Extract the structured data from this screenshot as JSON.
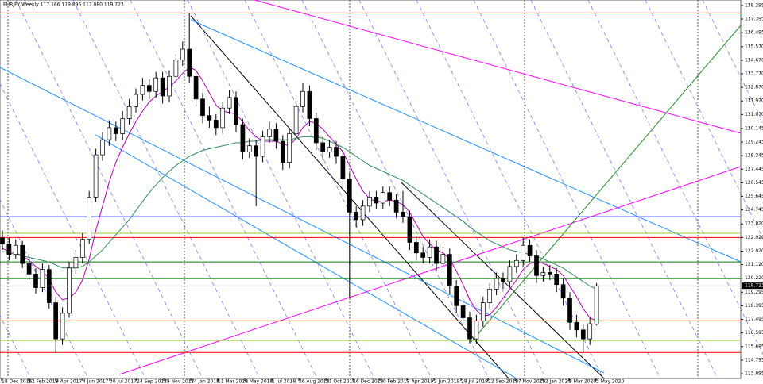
{
  "chart_data": {
    "type": "candlestick",
    "title": "EURJPY,Weekly  117.166 119.895 117.080 119.723",
    "ylim": [
      113.58,
      138.66
    ],
    "yticks": [
      138.295,
      137.395,
      136.495,
      {
        "value": 135.57,
        "label": "135.570"
      },
      {
        "value": 134.67,
        "label": "134.670"
      },
      {
        "value": 133.77,
        "label": "133.770"
      },
      {
        "value": 132.87,
        "label": "132.870"
      },
      {
        "value": 131.97,
        "label": "131.970"
      },
      {
        "value": 131.07,
        "label": "131.070"
      },
      130.145,
      129.245,
      128.345,
      127.445,
      126.545,
      125.645,
      124.745,
      {
        "value": 123.82,
        "label": "123.820"
      },
      {
        "value": 122.92,
        "label": "122.920"
      },
      {
        "value": 122.02,
        "label": "122.020"
      },
      {
        "value": 121.12,
        "label": "121.120"
      },
      {
        "value": 120.22,
        "label": "120.220"
      },
      119.295,
      118.395,
      117.495,
      116.595,
      115.695,
      114.795,
      113.895
    ],
    "date_labels": [
      "18 Dec 2016",
      "12 Feb 2017",
      "9 Apr 2017",
      "4 Jun 2017",
      "30 Jul 2017",
      "24 Sep 2017",
      "19 Nov 2017",
      "14 Jan 2018",
      "11 Mar 2018",
      "6 May 2018",
      "1 Jul 2018",
      "26 Aug 2018",
      "21 Oct 2018",
      "16 Dec 2018",
      "10 Feb 2019",
      "7 Apr 2019",
      "2 Jun 2019",
      "28 Jul 2019",
      "22 Sep 2019",
      "17 Nov 2019",
      "12 Jan 2020",
      "8 Mar 2020",
      "3 May 2020"
    ],
    "last_price": 119.723,
    "ohlc": [
      [
        122.9,
        123.4,
        122.1,
        122.5
      ],
      [
        122.5,
        122.9,
        121.4,
        121.8
      ],
      [
        121.8,
        122.8,
        121.5,
        122.4
      ],
      [
        122.4,
        122.7,
        120.9,
        121.2
      ],
      [
        121.2,
        121.6,
        120.1,
        120.5
      ],
      [
        120.5,
        120.9,
        119.2,
        119.6
      ],
      [
        119.6,
        121.2,
        119.3,
        120.8
      ],
      [
        120.8,
        121.1,
        118.2,
        118.6
      ],
      [
        118.6,
        119.0,
        115.27,
        116.2
      ],
      [
        116.2,
        118.3,
        115.8,
        117.9
      ],
      [
        117.9,
        121.3,
        117.6,
        120.9
      ],
      [
        120.9,
        122.1,
        120.5,
        121.6
      ],
      [
        121.6,
        123.2,
        121.2,
        122.8
      ],
      [
        122.8,
        126.0,
        122.5,
        125.6
      ],
      [
        125.6,
        128.8,
        125.3,
        128.4
      ],
      [
        128.4,
        129.9,
        128.0,
        129.4
      ],
      [
        129.4,
        130.7,
        129.0,
        130.2
      ],
      [
        130.2,
        130.6,
        129.3,
        129.8
      ],
      [
        129.8,
        131.3,
        129.4,
        130.8
      ],
      [
        130.8,
        132.1,
        130.4,
        131.6
      ],
      [
        131.6,
        132.8,
        131.2,
        132.4
      ],
      [
        132.4,
        133.5,
        132.0,
        133.0
      ],
      [
        133.0,
        133.4,
        132.1,
        132.6
      ],
      [
        132.6,
        133.9,
        132.2,
        133.5
      ],
      [
        133.5,
        133.9,
        131.8,
        132.3
      ],
      [
        132.3,
        134.0,
        131.9,
        133.6
      ],
      [
        133.6,
        135.1,
        133.2,
        134.7
      ],
      [
        134.7,
        135.9,
        134.3,
        135.4
      ],
      [
        135.4,
        137.8,
        133.2,
        133.6
      ],
      [
        133.6,
        134.0,
        131.6,
        132.1
      ],
      [
        132.1,
        132.5,
        130.5,
        131.0
      ],
      [
        131.0,
        131.6,
        130.2,
        130.7
      ],
      [
        130.7,
        131.1,
        129.7,
        130.2
      ],
      [
        130.2,
        131.9,
        129.8,
        131.5
      ],
      [
        131.5,
        132.7,
        131.1,
        132.2
      ],
      [
        132.2,
        132.6,
        129.9,
        130.4
      ],
      [
        130.4,
        130.8,
        128.1,
        128.6
      ],
      [
        128.6,
        129.5,
        128.2,
        129.0
      ],
      [
        129.0,
        129.4,
        125.0,
        128.3
      ],
      [
        128.3,
        130.0,
        127.9,
        129.6
      ],
      [
        129.6,
        130.6,
        129.2,
        130.1
      ],
      [
        130.1,
        130.5,
        128.8,
        129.3
      ],
      [
        129.3,
        129.7,
        127.4,
        127.9
      ],
      [
        127.9,
        130.2,
        127.5,
        129.8
      ],
      [
        129.8,
        132.0,
        129.4,
        131.6
      ],
      [
        131.6,
        133.2,
        131.2,
        132.6
      ],
      [
        132.6,
        133.0,
        130.3,
        130.8
      ],
      [
        130.8,
        131.2,
        128.7,
        129.2
      ],
      [
        129.2,
        129.6,
        128.1,
        128.6
      ],
      [
        128.6,
        129.4,
        128.2,
        128.9
      ],
      [
        128.9,
        129.3,
        127.8,
        128.3
      ],
      [
        128.3,
        128.7,
        126.3,
        126.8
      ],
      [
        126.8,
        127.2,
        118.9,
        124.6
      ],
      [
        124.6,
        125.0,
        123.6,
        124.1
      ],
      [
        124.1,
        125.4,
        123.7,
        125.0
      ],
      [
        125.0,
        126.0,
        124.6,
        125.6
      ],
      [
        125.6,
        126.0,
        124.8,
        125.2
      ],
      [
        125.2,
        126.3,
        124.8,
        125.9
      ],
      [
        125.9,
        126.3,
        125.0,
        125.4
      ],
      [
        125.4,
        125.8,
        124.2,
        124.6
      ],
      [
        124.6,
        126.0,
        123.9,
        124.3
      ],
      [
        124.3,
        124.7,
        122.1,
        122.6
      ],
      [
        122.6,
        123.0,
        121.4,
        121.9
      ],
      [
        121.9,
        122.3,
        121.2,
        121.6
      ],
      [
        121.6,
        122.8,
        121.2,
        122.3
      ],
      [
        122.3,
        122.7,
        120.7,
        121.2
      ],
      [
        121.2,
        122.3,
        120.8,
        121.8
      ],
      [
        121.8,
        122.2,
        119.2,
        119.7
      ],
      [
        119.7,
        120.1,
        117.9,
        118.4
      ],
      [
        118.4,
        118.9,
        117.1,
        117.6
      ],
      [
        117.6,
        118.0,
        115.9,
        116.2
      ],
      [
        116.2,
        117.8,
        115.9,
        117.4
      ],
      [
        117.4,
        119.0,
        117.0,
        118.6
      ],
      [
        118.6,
        119.9,
        118.2,
        119.5
      ],
      [
        119.5,
        120.6,
        119.1,
        120.2
      ],
      [
        120.2,
        120.6,
        119.5,
        120.0
      ],
      [
        120.0,
        121.4,
        119.6,
        121.0
      ],
      [
        121.0,
        121.8,
        120.6,
        121.4
      ],
      [
        121.4,
        122.9,
        121.0,
        122.4
      ],
      [
        122.4,
        122.8,
        121.3,
        121.7
      ],
      [
        121.7,
        122.1,
        119.9,
        120.4
      ],
      [
        120.4,
        121.0,
        120.0,
        120.6
      ],
      [
        120.6,
        121.1,
        120.1,
        120.5
      ],
      [
        120.5,
        120.9,
        119.3,
        119.8
      ],
      [
        119.8,
        120.2,
        118.4,
        118.9
      ],
      [
        118.9,
        119.3,
        116.8,
        117.3
      ],
      [
        117.3,
        117.8,
        116.3,
        116.8
      ],
      [
        116.8,
        117.2,
        115.3,
        116.2
      ],
      [
        116.2,
        117.6,
        115.8,
        117.2
      ],
      [
        117.166,
        119.895,
        117.08,
        119.723
      ]
    ],
    "series": [
      {
        "color": "#b000b0",
        "values": [
          122.2,
          122.0,
          121.9,
          121.7,
          121.4,
          121.0,
          120.7,
          120.2,
          119.3,
          118.8,
          118.9,
          119.3,
          120.1,
          121.5,
          123.4,
          125.0,
          126.6,
          127.9,
          128.9,
          129.8,
          130.6,
          131.3,
          131.9,
          132.3,
          132.6,
          132.9,
          133.3,
          133.8,
          134.2,
          134.0,
          133.3,
          132.5,
          131.7,
          131.3,
          131.2,
          131.1,
          130.6,
          130.0,
          129.6,
          129.3,
          129.3,
          129.3,
          129.1,
          129.0,
          129.5,
          130.2,
          130.6,
          130.5,
          130.1,
          129.6,
          129.1,
          128.6,
          127.7,
          126.8,
          126.0,
          125.5,
          125.3,
          125.3,
          125.4,
          125.3,
          125.1,
          124.6,
          123.8,
          123.0,
          122.5,
          122.1,
          121.9,
          121.5,
          120.7,
          119.8,
          118.8,
          118.1,
          117.7,
          117.8,
          118.3,
          118.9,
          119.5,
          120.1,
          120.8,
          121.2,
          121.3,
          121.2,
          121.0,
          120.8,
          120.4,
          119.7,
          119.0,
          118.2,
          117.6,
          117.4
        ]
      },
      {
        "color": "#2e8b57",
        "values": [
          122.0,
          121.9,
          121.8,
          121.7,
          121.6,
          121.5,
          121.4,
          121.3,
          121.1,
          120.9,
          120.9,
          120.9,
          121.0,
          121.3,
          121.7,
          122.1,
          122.6,
          123.1,
          123.6,
          124.1,
          124.7,
          125.3,
          125.9,
          126.4,
          126.9,
          127.3,
          127.7,
          128.0,
          128.3,
          128.5,
          128.7,
          128.8,
          128.9,
          129.0,
          129.1,
          129.2,
          129.2,
          129.3,
          129.3,
          129.4,
          129.4,
          129.4,
          129.4,
          129.4,
          129.5,
          129.6,
          129.6,
          129.6,
          129.5,
          129.3,
          129.1,
          128.9,
          128.6,
          128.3,
          128.0,
          127.7,
          127.5,
          127.3,
          127.1,
          126.9,
          126.7,
          126.4,
          126.1,
          125.8,
          125.5,
          125.2,
          124.9,
          124.6,
          124.3,
          124.0,
          123.6,
          123.3,
          123.0,
          122.7,
          122.5,
          122.3,
          122.1,
          122.0,
          121.9,
          121.8,
          121.7,
          121.5,
          121.3,
          121.1,
          120.9,
          120.6,
          120.3,
          120.0,
          119.7,
          119.5
        ]
      }
    ],
    "levels": [
      {
        "value": 137.8,
        "color": "#ff0000"
      },
      {
        "value": 124.3,
        "color": "#3333cc"
      },
      {
        "value": 123.2,
        "color": "#9acd32"
      },
      {
        "value": 122.92,
        "color": "#ff0000"
      },
      {
        "value": 121.3,
        "color": "#008000"
      },
      {
        "value": 120.2,
        "color": "#008000"
      },
      {
        "value": 117.4,
        "color": "#ff0000"
      },
      {
        "value": 116.1,
        "color": "#9acd32"
      },
      {
        "value": 115.3,
        "color": "#ff0000"
      }
    ]
  }
}
